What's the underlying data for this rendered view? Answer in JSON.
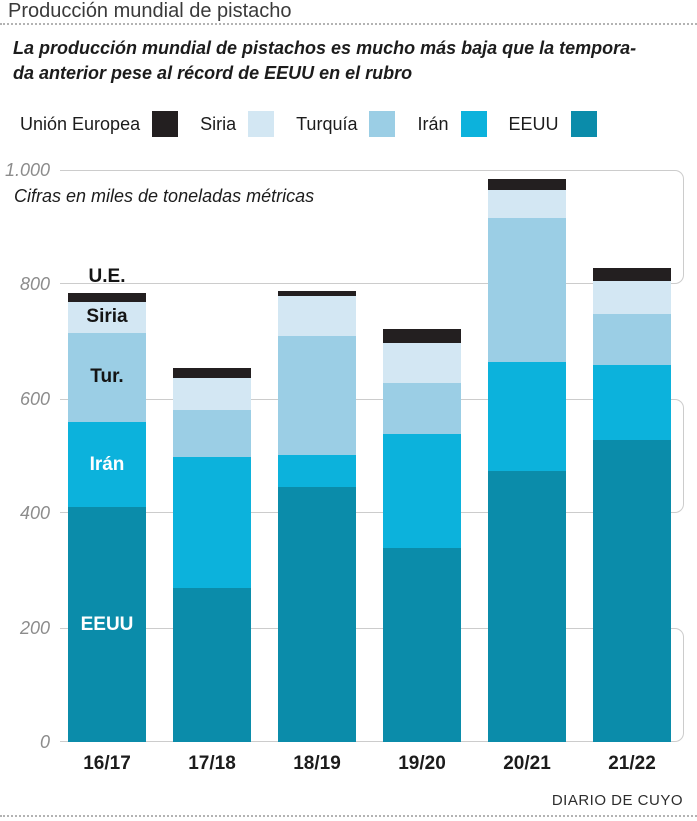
{
  "header": {
    "title": "Producción mundial de pistacho",
    "subtitle_line1": "La producción mundial de pistachos es mucho más baja que la tempora-",
    "subtitle_line2": "da anterior pese al récord de EEUU en el rubro"
  },
  "legend": {
    "items": [
      {
        "label": "Unión Europea",
        "color": "#231f20"
      },
      {
        "label": "Siria",
        "color": "#d3e7f3"
      },
      {
        "label": "Turquía",
        "color": "#9bcee5"
      },
      {
        "label": "Irán",
        "color": "#0cb2dc"
      },
      {
        "label": "EEUU",
        "color": "#0b8caa"
      }
    ]
  },
  "chart": {
    "note": "Cifras en miles de toneladas métricas",
    "y_tick_labels": [
      "1.000",
      "800",
      "600",
      "400",
      "200",
      "0"
    ],
    "bar_annotations": [
      {
        "text": "U.E.",
        "series": "Unión Europea",
        "placement": "above",
        "color": "#141414"
      },
      {
        "text": "Siria",
        "series": "Siria",
        "placement": "inside",
        "color": "#141414"
      },
      {
        "text": "Tur.",
        "series": "Turquía",
        "placement": "inside",
        "color": "#141414"
      },
      {
        "text": "Irán",
        "series": "Irán",
        "placement": "inside",
        "color": "#ffffff"
      },
      {
        "text": "EEUU",
        "series": "EEUU",
        "placement": "inside",
        "color": "#ffffff"
      }
    ]
  },
  "chart_data": {
    "type": "bar",
    "stacked": true,
    "title": "Producción mundial de pistacho",
    "ylabel": "miles de toneladas métricas",
    "ylim": [
      0,
      1000
    ],
    "yticks": [
      1000,
      800,
      600,
      400,
      200,
      0
    ],
    "grid": "horizontal",
    "legend_position": "top",
    "categories": [
      "16/17",
      "17/18",
      "18/19",
      "19/20",
      "20/21",
      "21/22"
    ],
    "series": [
      {
        "name": "EEUU",
        "color": "#0b8caa",
        "values": [
          410,
          270,
          446,
          339,
          474,
          528
        ]
      },
      {
        "name": "Irán",
        "color": "#0cb2dc",
        "values": [
          150,
          228,
          56,
          199,
          190,
          131
        ]
      },
      {
        "name": "Turquía",
        "color": "#9bcee5",
        "values": [
          155,
          82,
          208,
          89,
          252,
          89
        ]
      },
      {
        "name": "Siria",
        "color": "#d3e7f3",
        "values": [
          55,
          57,
          70,
          70,
          49,
          58
        ]
      },
      {
        "name": "Unión Europea",
        "color": "#231f20",
        "values": [
          15,
          16,
          8,
          25,
          19,
          23
        ]
      }
    ],
    "totals": [
      785,
      653,
      788,
      722,
      984,
      829
    ]
  },
  "footer": {
    "credit": "DIARIO DE CUYO"
  }
}
